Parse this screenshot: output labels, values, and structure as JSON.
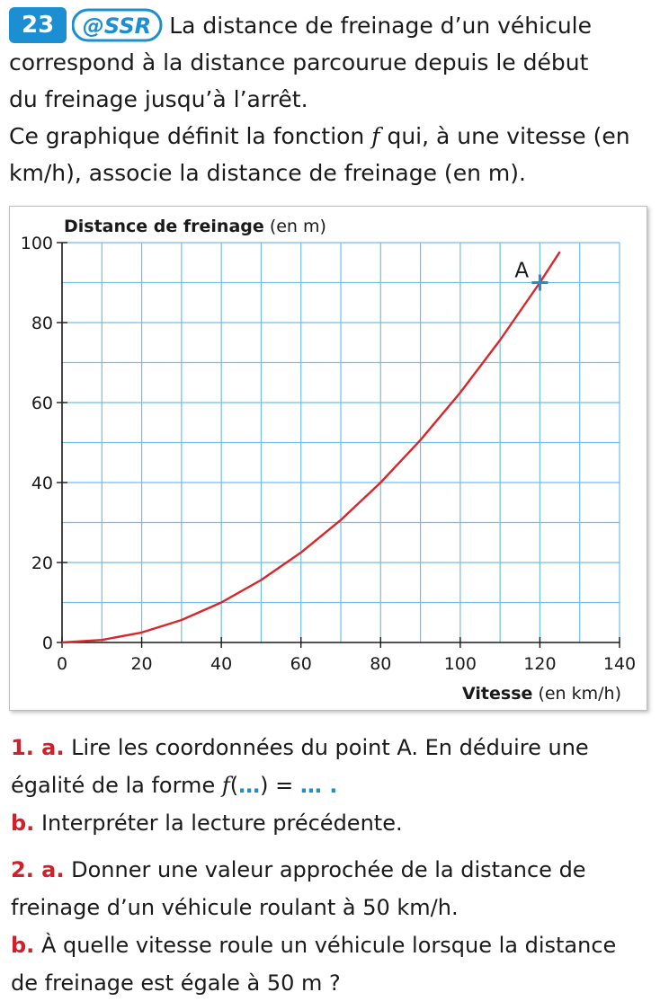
{
  "exercise": {
    "number": "23",
    "badge_text": "@SSR",
    "intro_line1_rest": "La distance de freinage d’un véhicule",
    "intro_line2": "correspond à la distance parcourue depuis le début",
    "intro_line3": "du freinage jusqu’à l’arrêt.",
    "desc_part1": "Ce graphique définit la fonction",
    "function_name": "f",
    "desc_part2": "qui, à une vitesse (en",
    "desc_line2": "km/h), associe la distance de freinage (en m)."
  },
  "chart_data": {
    "type": "line",
    "ylabel_bold": "Distance de freinage",
    "ylabel_unit": "(en m)",
    "xlabel_bold": "Vitesse",
    "xlabel_unit": "(en km/h)",
    "xlim": [
      0,
      140
    ],
    "ylim": [
      0,
      100
    ],
    "x_ticks": [
      0,
      20,
      40,
      60,
      80,
      100,
      120,
      140
    ],
    "y_ticks": [
      0,
      20,
      40,
      60,
      80,
      100
    ],
    "grid": true,
    "grid_step_x": 10,
    "grid_step_y": 10,
    "series": [
      {
        "color": "#d9262a",
        "x": [
          0,
          10,
          20,
          30,
          40,
          50,
          60,
          70,
          80,
          90,
          100,
          110,
          120,
          125
        ],
        "y": [
          0,
          0.625,
          2.5,
          5.625,
          10,
          15.625,
          22.5,
          30.625,
          40,
          50.625,
          62.5,
          75.625,
          90,
          97.7
        ]
      }
    ],
    "points": [
      {
        "label": "A",
        "x": 120,
        "y": 90,
        "color": "#1b8fd1"
      }
    ]
  },
  "questions": [
    {
      "num": "1. a.",
      "text1": "Lire les coordonnées du point A. En déduire une",
      "text2a": "égalité de la forme",
      "fname": "f",
      "text2b": "(",
      "dots1": "…",
      "text2c": ") = ",
      "dots2": "… .",
      "text2d": ""
    },
    {
      "num": "b.",
      "text1": "Interpréter la lecture précédente."
    },
    {
      "num": "2. a.",
      "text1": "Donner une valeur approchée de la distance de",
      "text2": "freinage d’un véhicule roulant à 50 km/h."
    },
    {
      "num": "b.",
      "text1": "À quelle vitesse roule un véhicule lorsque la distance",
      "text2": "de freinage est égale à 50 m ?"
    }
  ],
  "colors": {
    "accent_blue": "#1b8fd1",
    "accent_red": "#d1202b",
    "grid_blue": "#6fbfe8",
    "curve_red": "#d9262a"
  }
}
